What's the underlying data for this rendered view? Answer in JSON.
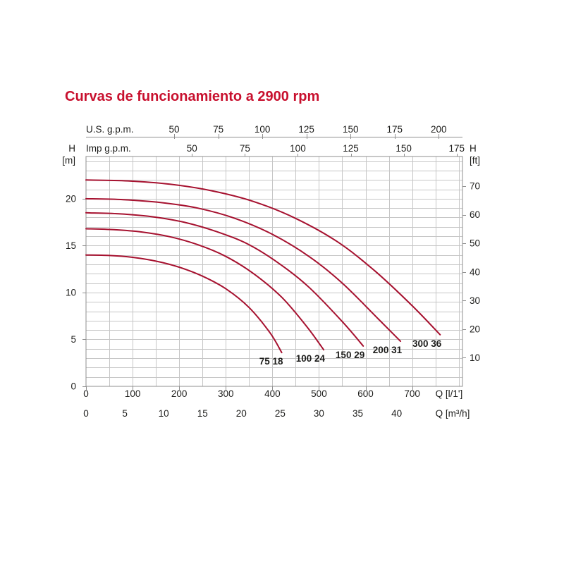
{
  "title": "Curvas de funcionamiento a 2900 rpm",
  "colors": {
    "title": "#c8102e",
    "curve": "#a6112f",
    "grid": "#c6c6c6",
    "axis": "#8f8f8f",
    "text": "#1d1d1b"
  },
  "chart_data": {
    "type": "line",
    "title": "Curvas de funcionamiento a 2900 rpm",
    "axes": {
      "top_us_gpm": {
        "label": "U.S. g.p.m.",
        "ticks": [
          50,
          75,
          100,
          125,
          150,
          175,
          200
        ],
        "lpm_per_unit": 3.785
      },
      "top_imp_gpm": {
        "label": "Imp g.p.m.",
        "ticks": [
          50,
          75,
          100,
          125,
          150,
          175
        ],
        "lpm_per_unit": 4.546
      },
      "bottom_lpm": {
        "label": "Q [l/1']",
        "ticks": [
          0,
          100,
          200,
          300,
          400,
          500,
          600,
          700
        ],
        "lpm_per_unit": 1
      },
      "bottom_m3h": {
        "label": "Q [m³/h]",
        "ticks": [
          0,
          5,
          10,
          15,
          20,
          25,
          30,
          35,
          40
        ],
        "lpm_per_unit": 16.6667
      },
      "left_m": {
        "label": "H",
        "unit": "[m]",
        "ticks": [
          0,
          5,
          10,
          15,
          20
        ],
        "m_per_unit": 1
      },
      "right_ft": {
        "label": "H",
        "unit": "[ft]",
        "ticks": [
          10,
          20,
          30,
          40,
          50,
          60,
          70
        ],
        "m_per_unit": 0.3048
      }
    },
    "xlim_lpm": [
      0,
      808
    ],
    "ylim_m": [
      0,
      24.5
    ],
    "grid_step_lpm": 50,
    "grid_step_m": 1,
    "legend_position": "on-curve-ends",
    "grid": "on",
    "series": [
      {
        "name": "75 18",
        "points": [
          [
            0,
            14.0
          ],
          [
            50,
            13.95
          ],
          [
            100,
            13.75
          ],
          [
            150,
            13.35
          ],
          [
            200,
            12.7
          ],
          [
            250,
            11.75
          ],
          [
            300,
            10.4
          ],
          [
            350,
            8.4
          ],
          [
            395,
            5.7
          ],
          [
            420,
            3.6
          ]
        ]
      },
      {
        "name": "100 24",
        "points": [
          [
            0,
            16.8
          ],
          [
            60,
            16.7
          ],
          [
            120,
            16.45
          ],
          [
            180,
            15.95
          ],
          [
            240,
            15.1
          ],
          [
            300,
            13.85
          ],
          [
            360,
            12.0
          ],
          [
            420,
            9.5
          ],
          [
            475,
            6.3
          ],
          [
            510,
            3.9
          ]
        ]
      },
      {
        "name": "150 29",
        "points": [
          [
            0,
            18.5
          ],
          [
            70,
            18.4
          ],
          [
            140,
            18.1
          ],
          [
            210,
            17.5
          ],
          [
            280,
            16.5
          ],
          [
            350,
            15.1
          ],
          [
            420,
            12.9
          ],
          [
            480,
            10.5
          ],
          [
            550,
            6.9
          ],
          [
            595,
            4.3
          ]
        ]
      },
      {
        "name": "200 31",
        "points": [
          [
            0,
            20.0
          ],
          [
            80,
            19.9
          ],
          [
            160,
            19.6
          ],
          [
            240,
            19.0
          ],
          [
            320,
            17.9
          ],
          [
            400,
            16.2
          ],
          [
            480,
            13.8
          ],
          [
            550,
            11.0
          ],
          [
            625,
            7.3
          ],
          [
            675,
            4.8
          ]
        ]
      },
      {
        "name": "300 36",
        "points": [
          [
            0,
            22.0
          ],
          [
            90,
            21.9
          ],
          [
            180,
            21.55
          ],
          [
            270,
            20.85
          ],
          [
            360,
            19.7
          ],
          [
            450,
            17.9
          ],
          [
            540,
            15.4
          ],
          [
            620,
            12.3
          ],
          [
            700,
            8.6
          ],
          [
            760,
            5.5
          ]
        ]
      }
    ]
  }
}
